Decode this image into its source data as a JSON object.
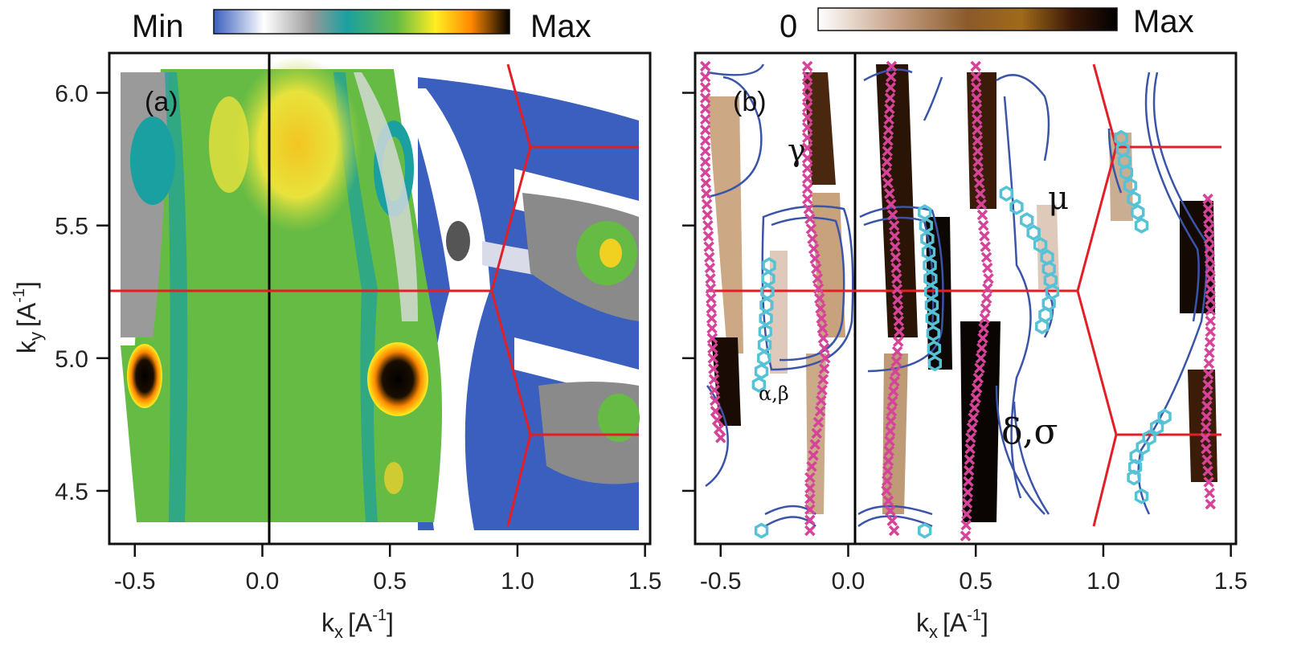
{
  "chart_data": [
    {
      "type": "heatmap",
      "panel_label": "(a)",
      "xlabel": "k",
      "xlabel_sub": "x",
      "xlabel_unit": "[A",
      "xlabel_sup": "-1",
      "xlabel_close": "]",
      "ylabel": "k",
      "ylabel_sub": "y",
      "ylabel_unit": "[A",
      "ylabel_sup": "-1",
      "ylabel_close": "]",
      "xlim": [
        -0.6,
        1.52
      ],
      "ylim": [
        4.3,
        6.15
      ],
      "xticks": [
        "-0.5",
        "0.0",
        "0.5",
        "1.0",
        "1.5"
      ],
      "yticks": [
        "6.0",
        "5.5",
        "5.0",
        "4.5"
      ],
      "colorbar": {
        "min_label": "Min",
        "max_label": "Max",
        "colors": [
          "#3a5fbf",
          "#ffffff",
          "#9a9a9a",
          "#1aa0a0",
          "#66bb44",
          "#ffee22",
          "#ff8800",
          "#000000"
        ]
      },
      "zone_boundary_color": "#e21f26",
      "vertical_line_color": "#000000",
      "intensity_spots": [
        {
          "name": "hot-spot-left",
          "x": -0.52,
          "y": 4.88,
          "level": "max"
        },
        {
          "name": "hot-spot-right",
          "x": 0.52,
          "y": 4.86,
          "level": "max"
        },
        {
          "name": "yellow-region-top",
          "x": 0.12,
          "y": 5.75,
          "level": "high"
        },
        {
          "name": "green-spot-right",
          "x": 1.38,
          "y": 5.36,
          "level": "high"
        }
      ]
    },
    {
      "type": "heatmap",
      "panel_label": "(b)",
      "xlabel": "k",
      "xlabel_sub": "x",
      "xlabel_unit": "[A",
      "xlabel_sup": "-1",
      "xlabel_close": "]",
      "xlim": [
        -0.6,
        1.52
      ],
      "ylim": [
        4.3,
        6.15
      ],
      "xticks": [
        "-0.5",
        "0.0",
        "0.5",
        "1.0",
        "1.5"
      ],
      "colorbar": {
        "min_label": "0",
        "max_label": "Max",
        "colors": [
          "#ffffff",
          "#c8a58c",
          "#8a5a2a",
          "#a06a1a",
          "#3a1808",
          "#000000"
        ]
      },
      "band_labels": [
        "γ",
        "μ",
        "α,β",
        "δ,σ"
      ],
      "marker_colors": {
        "x_markers": "#d6449a",
        "hex_markers": "#56c2d6",
        "fermi_contours": "#3a55a8"
      },
      "x_marker_bands": [
        {
          "x": [
            -0.56,
            -0.56,
            -0.54,
            -0.53,
            -0.52,
            -0.5
          ],
          "y": [
            6.1,
            5.7,
            5.3,
            5.0,
            4.8,
            4.7
          ]
        },
        {
          "x": [
            -0.16,
            -0.16,
            -0.12,
            -0.09,
            -0.11,
            -0.15,
            -0.15
          ],
          "y": [
            6.1,
            5.6,
            5.3,
            5.0,
            4.8,
            4.55,
            4.35
          ]
        },
        {
          "x": [
            0.17,
            0.15,
            0.18,
            0.2,
            0.17,
            0.15,
            0.18
          ],
          "y": [
            6.1,
            5.7,
            5.5,
            5.1,
            4.8,
            4.5,
            4.35
          ]
        },
        {
          "x": [
            0.5,
            0.51,
            0.55,
            0.52,
            0.48,
            0.46
          ],
          "y": [
            6.1,
            5.7,
            5.3,
            5.0,
            4.7,
            4.33
          ]
        },
        {
          "x": [
            1.41,
            1.42,
            1.42,
            1.4,
            1.42
          ],
          "y": [
            5.6,
            5.3,
            5.1,
            4.7,
            4.45
          ]
        }
      ],
      "hex_marker_bands": [
        {
          "x": [
            -0.31,
            -0.32,
            -0.33,
            -0.35
          ],
          "y": [
            5.35,
            5.2,
            5.0,
            4.9
          ]
        },
        {
          "x": [
            0.3,
            0.32,
            0.33,
            0.34
          ],
          "y": [
            5.55,
            5.35,
            5.15,
            4.98
          ]
        },
        {
          "x": [
            0.62,
            0.7,
            0.78,
            0.8,
            0.76
          ],
          "y": [
            5.62,
            5.52,
            5.38,
            5.25,
            5.12
          ]
        },
        {
          "x": [
            1.07,
            1.09,
            1.12,
            1.15
          ],
          "y": [
            5.83,
            5.7,
            5.6,
            5.5
          ]
        },
        {
          "x": [
            1.24,
            1.18,
            1.13,
            1.12,
            1.15
          ],
          "y": [
            4.78,
            4.7,
            4.63,
            4.55,
            4.48
          ]
        },
        {
          "x": [
            -0.34,
            0.3
          ],
          "y": [
            4.35,
            4.35
          ]
        }
      ]
    }
  ]
}
